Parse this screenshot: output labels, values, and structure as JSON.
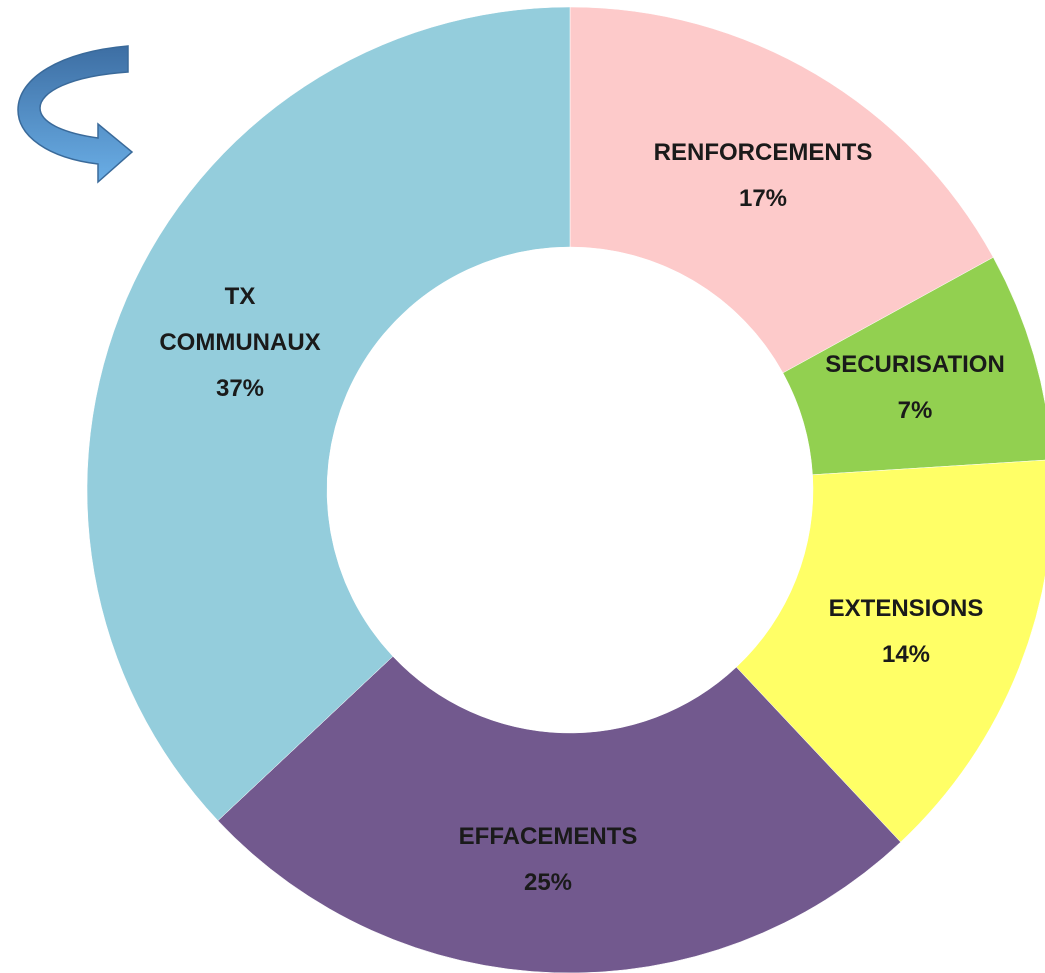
{
  "chart_data": {
    "type": "donut",
    "categories": [
      "RENFORCEMENTS",
      "SECURISATION",
      "EXTENSIONS",
      "EFFACEMENTS",
      "TX COMMUNAUX"
    ],
    "values": [
      17,
      7,
      14,
      25,
      37
    ],
    "value_labels": [
      "17%",
      "7%",
      "14%",
      "25%",
      "37%"
    ],
    "colors": [
      "#fdcaca",
      "#92d050",
      "#ffff66",
      "#72598e",
      "#94cddc"
    ]
  }
}
